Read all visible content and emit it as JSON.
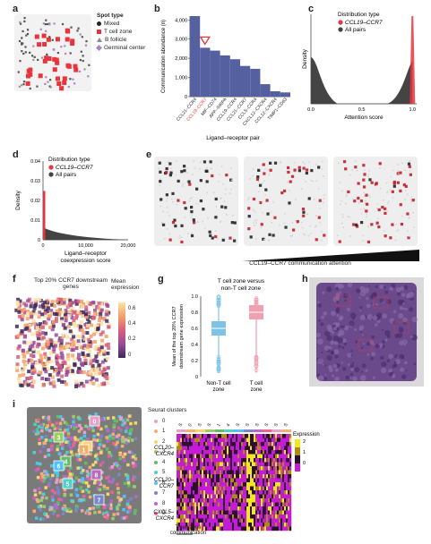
{
  "panel_a": {
    "letter": "a",
    "legend_title": "Spot type",
    "legend": [
      {
        "label": "Mixed",
        "color": "#222222",
        "shape": "circle"
      },
      {
        "label": "T cell zone",
        "color": "#e8343c",
        "shape": "square"
      },
      {
        "label": "B follicle",
        "color": "#888888",
        "shape": "triangle"
      },
      {
        "label": "Germinal center",
        "color": "#b086c0",
        "shape": "diamond"
      }
    ]
  },
  "panel_b": {
    "letter": "b",
    "chart_data": {
      "type": "bar",
      "categories": [
        "CCL21–CCR4",
        "CCL19–CCR7",
        "MIF–CD74",
        "APP–SIRPA",
        "CCL19–CCR4",
        "CCL21–CCR7",
        "CCL5–CCR4",
        "CXCL12–CXCR4",
        "CCL12–CXCR4",
        "TIMP1–CD63"
      ],
      "values": [
        4200,
        2550,
        2400,
        2150,
        1950,
        1600,
        1450,
        650,
        280,
        220
      ],
      "highlight_index": 1,
      "highlight_color": "#e8343c",
      "bar_color": "#5560a0",
      "ylabel": "Communication abundance (n)",
      "xlabel": "Ligand–receptor pair",
      "ylim": [
        0,
        4200
      ],
      "yticks": [
        "0",
        "1,000",
        "2,000",
        "3,000",
        "4,000"
      ]
    }
  },
  "panel_c": {
    "letter": "c",
    "chart_data": {
      "type": "area",
      "legend_title": "Distribution type",
      "series": [
        {
          "name": "CCL19–CCR7",
          "color": "#e8343c"
        },
        {
          "name": "All pairs",
          "color": "#444444"
        }
      ],
      "xlabel": "Attention score",
      "ylabel": "Density",
      "xticks": [
        "0.0",
        "0.5",
        "1.0"
      ],
      "xlim": [
        0,
        1
      ]
    }
  },
  "panel_d": {
    "letter": "d",
    "chart_data": {
      "type": "area",
      "legend_title": "Distribution type",
      "series": [
        {
          "name": "CCL19–CCR7",
          "color": "#e8343c"
        },
        {
          "name": "All pairs",
          "color": "#444444"
        }
      ],
      "xlabel": "Ligand–receptor coexpression score",
      "ylabel": "Density",
      "xticks": [
        "0",
        "10,000",
        "20,000"
      ],
      "yticks": [
        "0",
        "0.01",
        "0.02",
        "0.03",
        "0.04"
      ],
      "xlim": [
        0,
        20000
      ],
      "ylim": [
        0,
        0.04
      ]
    }
  },
  "panel_e": {
    "letter": "e",
    "caption": "CCL19–CCR7 communication attention"
  },
  "panel_f": {
    "letter": "f",
    "title": "Top 20% CCR7 downstream genes",
    "colorbar_title": "Mean expression",
    "colorbar_ticks": [
      "0.6",
      "0.4",
      "0.2",
      "0"
    ]
  },
  "panel_g": {
    "letter": "g",
    "chart_data": {
      "type": "box",
      "title": "T cell zone versus non-T cell zone",
      "categories": [
        "Non-T cell zone",
        "T cell zone"
      ],
      "colors": [
        "#7ec3e6",
        "#f0a0b0"
      ],
      "ylabel": "Mean of the top 20% CCR7 downstream gene expression",
      "yticks": [
        "0",
        "0.2",
        "0.4",
        "0.6",
        "0.8",
        "1.0"
      ],
      "ylim": [
        0,
        1.0
      ],
      "medians": [
        0.6,
        0.8
      ]
    }
  },
  "panel_h": {
    "letter": "h"
  },
  "panel_i": {
    "letter": "i",
    "clusters_title": "Seurat clusters",
    "clusters": [
      "0",
      "1",
      "2",
      "3",
      "4",
      "5",
      "6",
      "7",
      "8",
      "9"
    ],
    "cluster_colors": [
      "#e8a0c8",
      "#f0b070",
      "#f5d76e",
      "#9ccc65",
      "#66bb6a",
      "#4dd0c8",
      "#4fc3f7",
      "#7986cb",
      "#ba68c8",
      "#f06292"
    ],
    "row_labels": [
      "CCL20–CXCR4",
      "CCL20–CCR7",
      "CXCL5–CXCR4"
    ],
    "column_labels": [
      "S",
      "0",
      "S",
      "S",
      "1",
      "4",
      "S",
      "S",
      "S",
      "S",
      "S",
      "S"
    ],
    "expression_title": "Expression",
    "expression_ticks": [
      "2",
      "1",
      "0"
    ],
    "bottom_label": "T cell zone communication"
  }
}
